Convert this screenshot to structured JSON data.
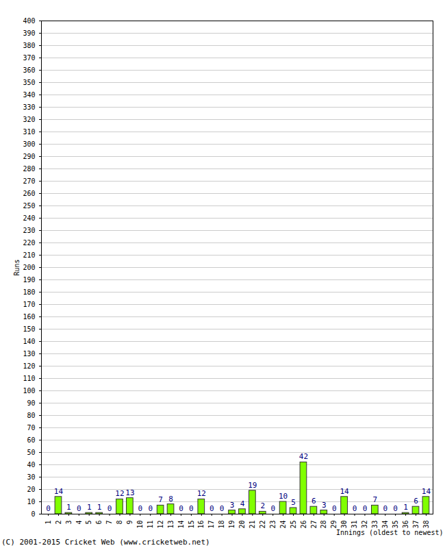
{
  "chart_data": {
    "type": "bar",
    "categories": [
      "1",
      "2",
      "3",
      "4",
      "5",
      "6",
      "7",
      "8",
      "9",
      "10",
      "11",
      "12",
      "13",
      "14",
      "15",
      "16",
      "17",
      "18",
      "19",
      "20",
      "21",
      "22",
      "23",
      "24",
      "25",
      "26",
      "27",
      "28",
      "29",
      "30",
      "31",
      "32",
      "33",
      "34",
      "35",
      "36",
      "37",
      "38"
    ],
    "values": [
      0,
      14,
      1,
      0,
      1,
      1,
      0,
      12,
      13,
      0,
      0,
      7,
      8,
      0,
      0,
      12,
      0,
      0,
      3,
      4,
      19,
      2,
      0,
      10,
      5,
      42,
      6,
      3,
      0,
      14,
      0,
      0,
      7,
      0,
      0,
      1,
      6,
      14
    ],
    "color": "#80ff00",
    "ylim": [
      0,
      400
    ],
    "yticks": [
      0,
      10,
      20,
      30,
      40,
      50,
      60,
      70,
      80,
      90,
      100,
      110,
      120,
      130,
      140,
      150,
      160,
      170,
      180,
      190,
      200,
      210,
      220,
      230,
      240,
      250,
      260,
      270,
      280,
      290,
      300,
      310,
      320,
      330,
      340,
      350,
      360,
      370,
      380,
      390,
      400
    ],
    "grid": true,
    "data_labels": true,
    "xlabel": "Innings (oldest to newest)",
    "ylabel": "Runs",
    "caption": "(C) 2001-2015 Cricket Web (www.cricketweb.net)"
  }
}
